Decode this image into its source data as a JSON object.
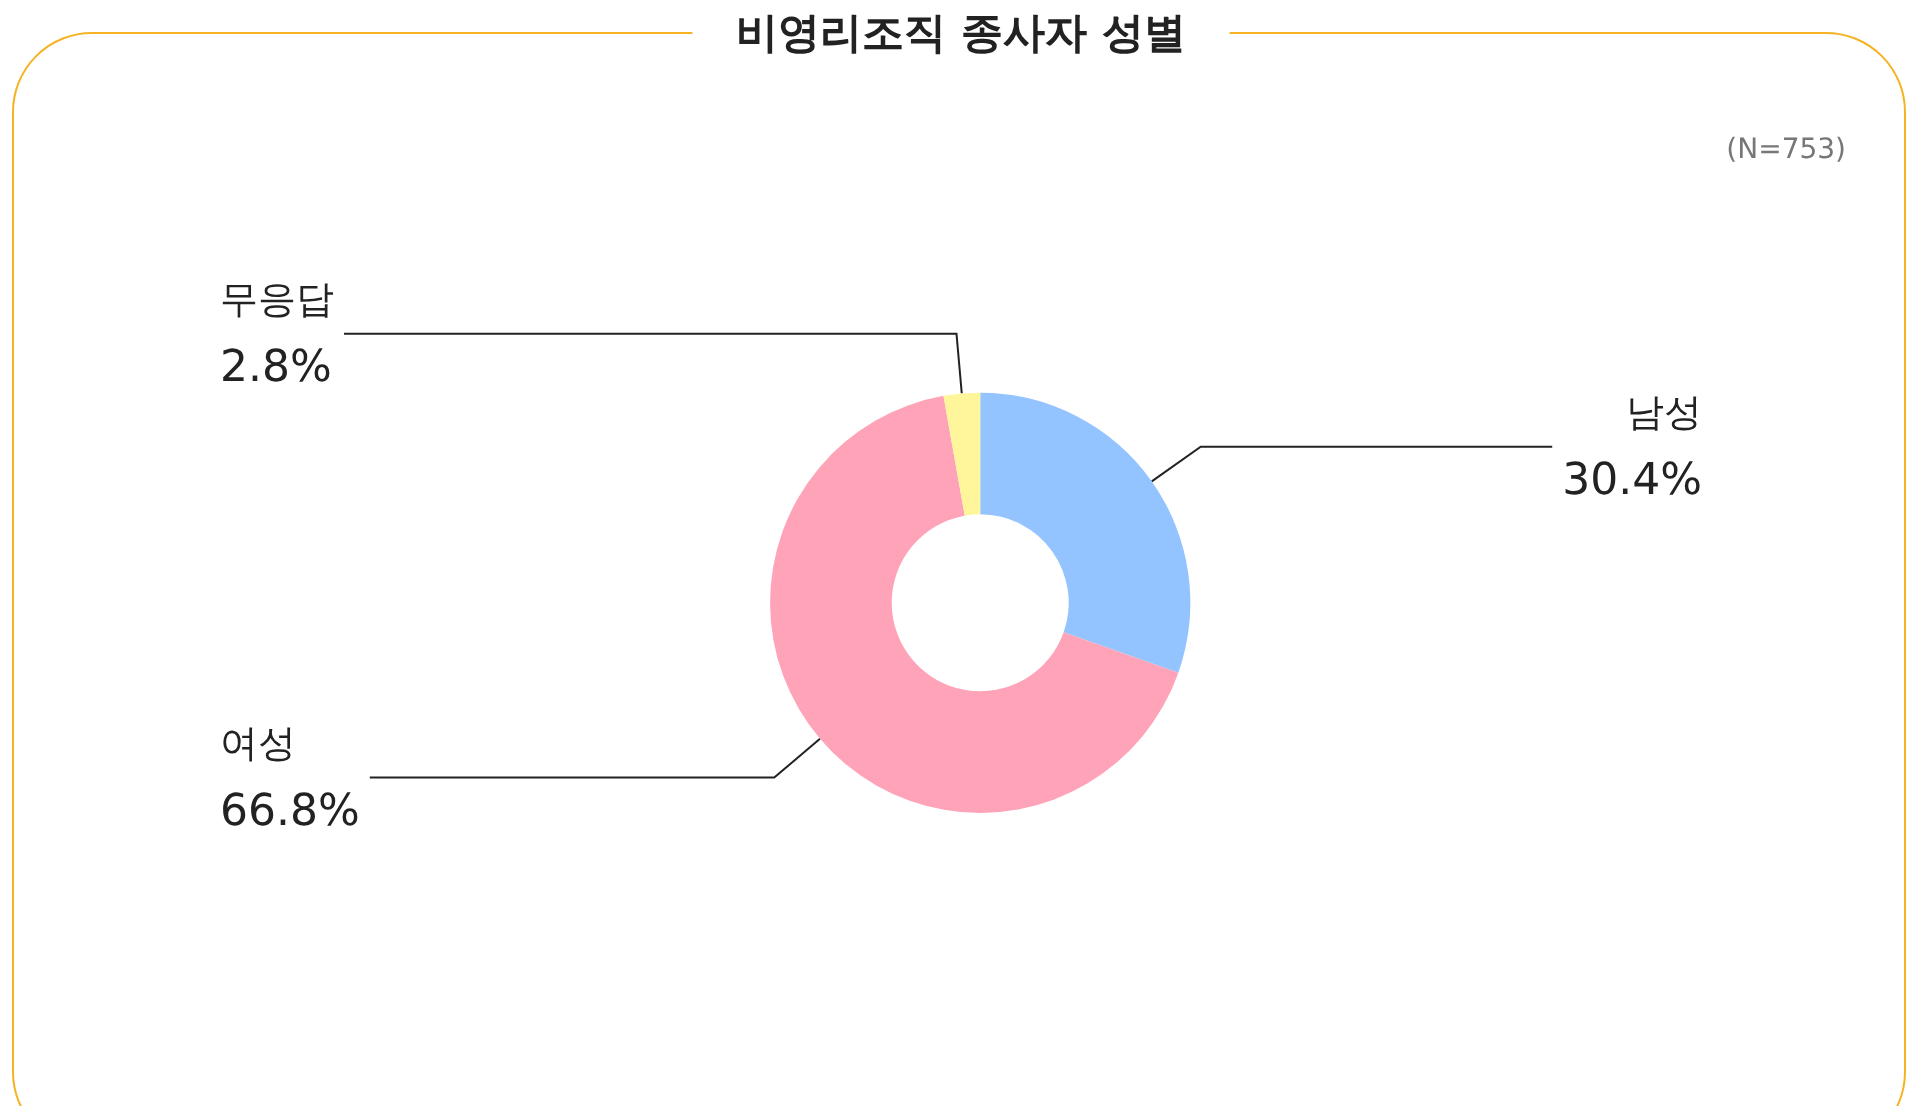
{
  "chart_data": {
    "type": "donut",
    "title": "비영리조직 종사자 성별",
    "annotations": [
      "(N=753)"
    ],
    "categories": [
      "남성",
      "여성",
      "무응답"
    ],
    "values": [
      30.4,
      66.8,
      2.8
    ],
    "value_labels": [
      "30.4%",
      "66.8%",
      "2.8%"
    ],
    "colors": [
      "#94c4ff",
      "#ffa3b8",
      "#fff59a"
    ],
    "legend": false
  }
}
